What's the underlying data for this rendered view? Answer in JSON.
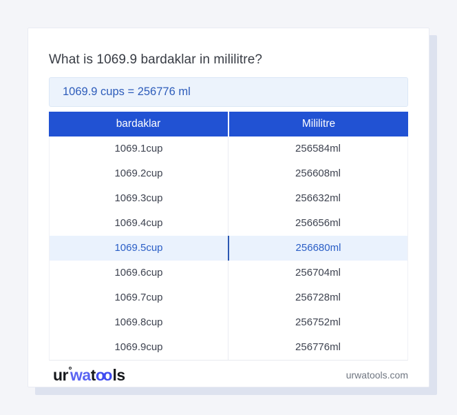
{
  "page": {
    "title_question": "What is 1069.9 bardaklar in mililitre?",
    "answer": "1069.9 cups = 256776 ml",
    "footer_domain": "urwatools.com"
  },
  "logo": {
    "part1": "ur",
    "part2": "wa",
    "part3": "t",
    "part4": "oo",
    "part5": "ls"
  },
  "table": {
    "columns": [
      "bardaklar",
      "Mililitre"
    ],
    "rows": [
      {
        "cup": "1069.1cup",
        "ml": "256584ml",
        "highlighted": false
      },
      {
        "cup": "1069.2cup",
        "ml": "256608ml",
        "highlighted": false
      },
      {
        "cup": "1069.3cup",
        "ml": "256632ml",
        "highlighted": false
      },
      {
        "cup": "1069.4cup",
        "ml": "256656ml",
        "highlighted": false
      },
      {
        "cup": "1069.5cup",
        "ml": "256680ml",
        "highlighted": true
      },
      {
        "cup": "1069.6cup",
        "ml": "256704ml",
        "highlighted": false
      },
      {
        "cup": "1069.7cup",
        "ml": "256728ml",
        "highlighted": false
      },
      {
        "cup": "1069.8cup",
        "ml": "256752ml",
        "highlighted": false
      },
      {
        "cup": "1069.9cup",
        "ml": "256776ml",
        "highlighted": false
      }
    ]
  },
  "colors": {
    "header_blue": "#2152d3",
    "accent_text": "#2d5cba",
    "answer_bg": "#ecf3fc",
    "highlight_bg": "#eaf2fd",
    "highlight_text": "#2a5ec6",
    "highlight_divider": "#2b57b2",
    "logo_blue_1": "#5a64f2",
    "logo_blue_2": "#3f4cf0"
  }
}
